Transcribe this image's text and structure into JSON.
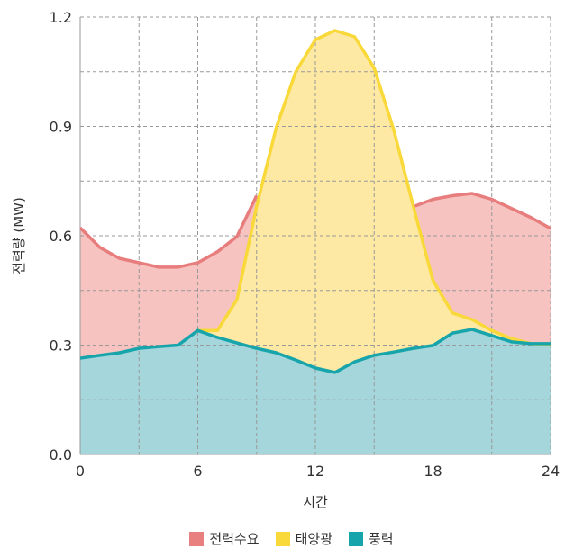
{
  "chart_data": {
    "type": "area",
    "title": "",
    "xlabel": "시간",
    "ylabel": "전력량 (MW)",
    "xlim": [
      0,
      24
    ],
    "ylim": [
      0,
      1.2
    ],
    "xticks": [
      "0",
      "6",
      "12",
      "18",
      "24"
    ],
    "yticks": [
      "0.0",
      "0.3",
      "0.6",
      "0.9",
      "1.2"
    ],
    "grid": true,
    "legend_position": "bottom",
    "series": [
      {
        "name": "전력수요",
        "color": "#e77d7d",
        "fill": "#f6c3c1",
        "x": [
          0,
          1,
          2,
          3,
          4,
          5,
          6,
          7,
          8,
          9,
          17,
          18,
          19,
          20,
          21,
          22,
          23,
          24
        ],
        "values": [
          0.622,
          0.568,
          0.538,
          0.526,
          0.514,
          0.514,
          0.526,
          0.556,
          0.598,
          0.71,
          0.68,
          0.7,
          0.71,
          0.716,
          0.7,
          0.675,
          0.65,
          0.62
        ]
      },
      {
        "name": "태양광",
        "color": "#f9d83a",
        "fill": "#fde9a3",
        "x": [
          6,
          7,
          8,
          9,
          10,
          11,
          12,
          13,
          14,
          15,
          16,
          17,
          18,
          19,
          20,
          21,
          22,
          23,
          24
        ],
        "values": [
          0.34,
          0.34,
          0.425,
          0.68,
          0.896,
          1.05,
          1.138,
          1.163,
          1.146,
          1.06,
          0.89,
          0.68,
          0.477,
          0.388,
          0.37,
          0.34,
          0.318,
          0.304,
          0.3
        ]
      },
      {
        "name": "풍력",
        "color": "#17a5ab",
        "fill": "#a4d6db",
        "x": [
          0,
          1,
          2,
          3,
          4,
          5,
          6,
          7,
          8,
          9,
          10,
          11,
          12,
          13,
          14,
          15,
          16,
          17,
          18,
          19,
          20,
          21,
          22,
          23,
          24
        ],
        "values": [
          0.264,
          0.272,
          0.279,
          0.291,
          0.296,
          0.3,
          0.34,
          0.321,
          0.306,
          0.291,
          0.279,
          0.259,
          0.237,
          0.225,
          0.254,
          0.272,
          0.281,
          0.291,
          0.299,
          0.333,
          0.343,
          0.326,
          0.309,
          0.304,
          0.304
        ]
      }
    ]
  }
}
